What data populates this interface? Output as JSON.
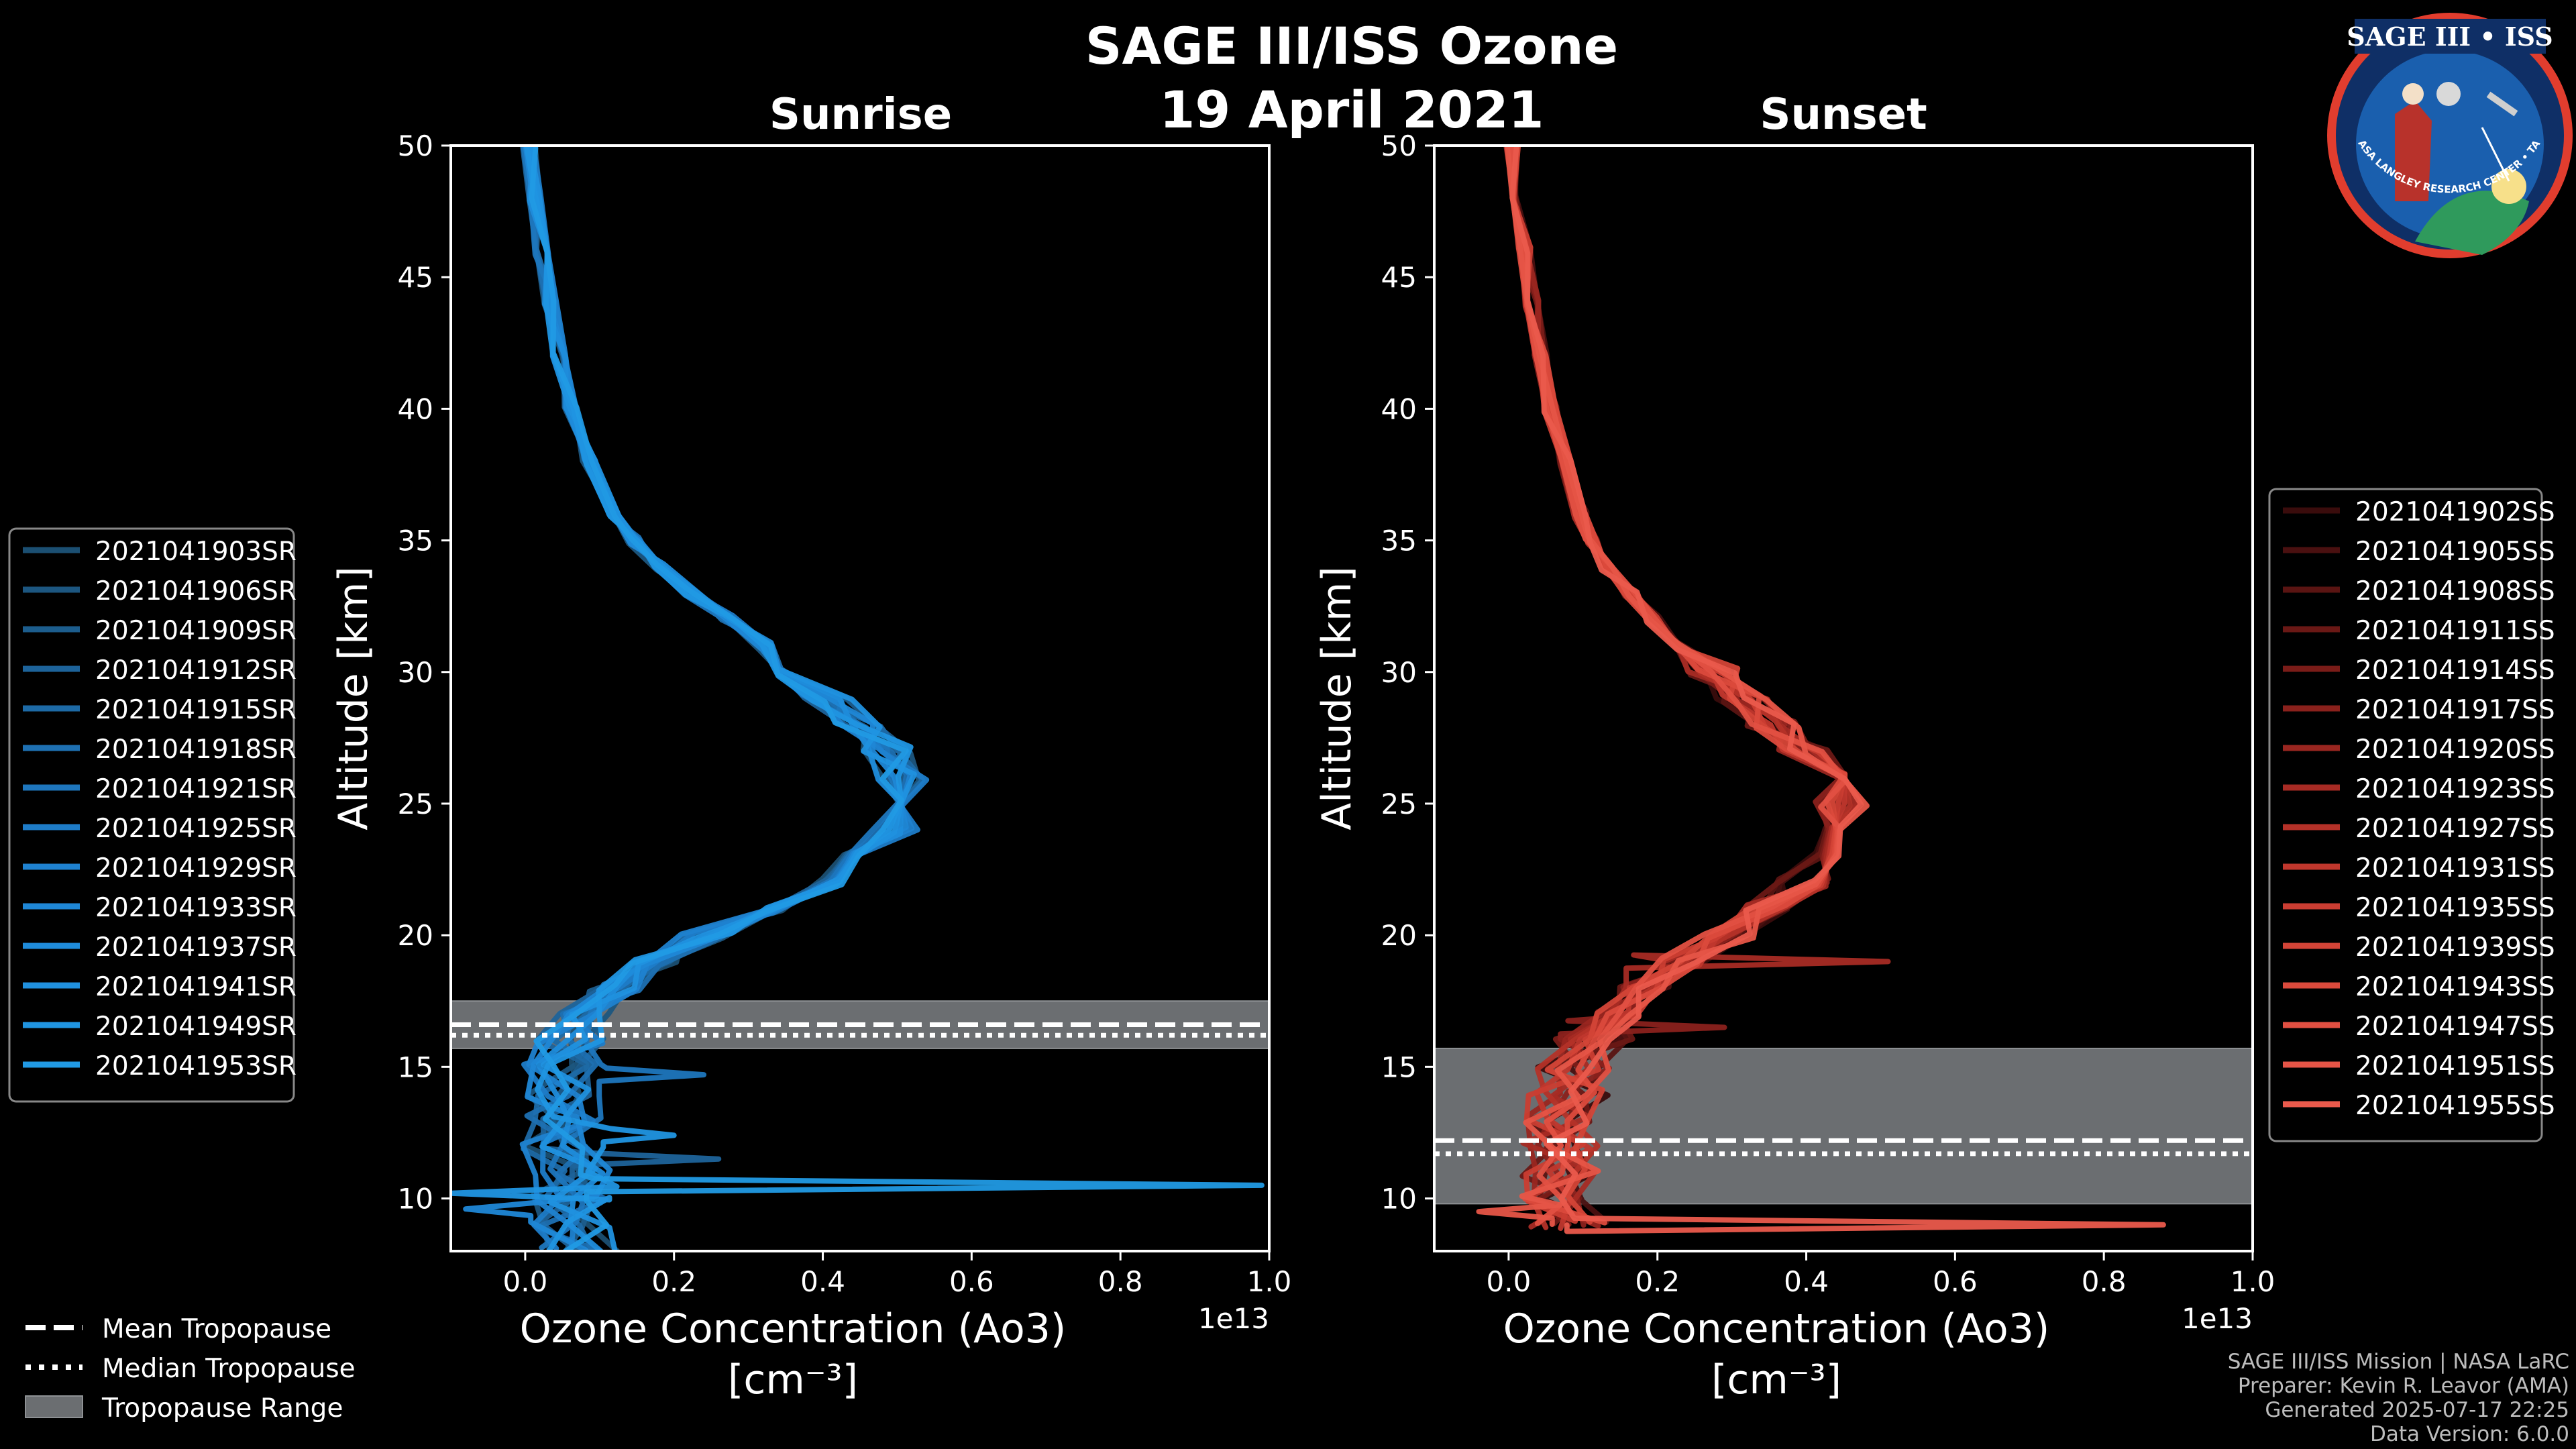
{
  "figure": {
    "title": "SAGE III/ISS Ozone",
    "date": "19 April 2021",
    "footer": [
      "SAGE III/ISS Mission | NASA LaRC",
      "Preparer: Kevin R. Leavor (AMA)",
      "Generated 2025-07-17 22:25",
      "Data Version: 6.0.0"
    ],
    "badge": {
      "title": "SAGE III • ISS",
      "ring_text": "BALL • NASA LANGLEY RESEARCH CENTER • TAS-I • ESA"
    },
    "colors": {
      "sunrise": "#1f9be0",
      "sunset": "#e8564a",
      "tropo_fill": "#6b6e71",
      "background": "#000000"
    }
  },
  "chart_data": [
    {
      "type": "line",
      "panel": "Sunrise",
      "title": "Sunrise",
      "xlabel": "Ozone Concentration (Ao3)",
      "xunit": "[cm⁻³]",
      "ylabel": "Altitude [km]",
      "xlim": [
        -0.1,
        1.0
      ],
      "ylim": [
        8,
        50
      ],
      "x_scale_label": "1e13",
      "xticks": [
        0.0,
        0.2,
        0.4,
        0.6,
        0.8,
        1.0
      ],
      "xtick_labels": [
        "0.0",
        "0.2",
        "0.4",
        "0.6",
        "0.8",
        "1.0"
      ],
      "yticks": [
        10,
        15,
        20,
        25,
        30,
        35,
        40,
        45,
        50
      ],
      "ytick_labels": [
        "10",
        "15",
        "20",
        "25",
        "30",
        "35",
        "40",
        "45",
        "50"
      ],
      "tropopause": {
        "mean": 16.6,
        "median": 16.2,
        "range": [
          15.7,
          17.5
        ]
      },
      "legend_position": "left",
      "series_names": [
        "2021041903SR",
        "2021041906SR",
        "2021041909SR",
        "2021041912SR",
        "2021041915SR",
        "2021041918SR",
        "2021041921SR",
        "2021041925SR",
        "2021041929SR",
        "2021041933SR",
        "2021041937SR",
        "2021041941SR",
        "2021041949SR",
        "2021041953SR"
      ],
      "series_colors": [
        "#1b4f72",
        "#1c5680",
        "#1c5d8d",
        "#1d639a",
        "#1d6aa6",
        "#1e70b2",
        "#1e76bd",
        "#1e7cc8",
        "#1f82d0",
        "#1f87d6",
        "#1f8cdb",
        "#2091df",
        "#2095e1",
        "#219ae4"
      ],
      "base_profile": {
        "altitude": [
          8,
          9,
          10,
          11,
          12,
          13,
          14,
          15,
          16,
          17,
          18,
          19,
          20,
          21,
          22,
          23,
          24,
          25,
          26,
          27,
          28,
          29,
          30,
          31,
          32,
          33,
          34,
          35,
          36,
          38,
          40,
          42,
          44,
          46,
          48,
          50
        ],
        "ozone": [
          0.07,
          0.06,
          0.06,
          0.06,
          0.05,
          0.05,
          0.05,
          0.05,
          0.06,
          0.08,
          0.12,
          0.17,
          0.24,
          0.33,
          0.4,
          0.45,
          0.49,
          0.51,
          0.5,
          0.48,
          0.44,
          0.4,
          0.36,
          0.32,
          0.27,
          0.22,
          0.18,
          0.145,
          0.12,
          0.085,
          0.06,
          0.045,
          0.033,
          0.022,
          0.012,
          0.005
        ]
      },
      "outliers": [
        {
          "series": 13,
          "altitude": 10.5,
          "ozone": 0.99
        },
        {
          "series": 12,
          "altitude": 10.2,
          "ozone": -0.1
        },
        {
          "series": 12,
          "altitude": 12.4,
          "ozone": 0.2
        },
        {
          "series": 6,
          "altitude": 14.7,
          "ozone": 0.24
        },
        {
          "series": 3,
          "altitude": 11.5,
          "ozone": 0.26
        },
        {
          "series": 9,
          "altitude": 9.6,
          "ozone": -0.08
        }
      ]
    },
    {
      "type": "line",
      "panel": "Sunset",
      "title": "Sunset",
      "xlabel": "Ozone Concentration (Ao3)",
      "xunit": "[cm⁻³]",
      "ylabel": "Altitude [km]",
      "xlim": [
        -0.1,
        1.0
      ],
      "ylim": [
        8,
        50
      ],
      "x_scale_label": "1e13",
      "xticks": [
        0.0,
        0.2,
        0.4,
        0.6,
        0.8,
        1.0
      ],
      "xtick_labels": [
        "0.0",
        "0.2",
        "0.4",
        "0.6",
        "0.8",
        "1.0"
      ],
      "yticks": [
        10,
        15,
        20,
        25,
        30,
        35,
        40,
        45,
        50
      ],
      "ytick_labels": [
        "10",
        "15",
        "20",
        "25",
        "30",
        "35",
        "40",
        "45",
        "50"
      ],
      "tropopause": {
        "mean": 12.2,
        "median": 11.7,
        "range": [
          9.8,
          15.7
        ]
      },
      "legend_position": "right",
      "series_names": [
        "2021041902SS",
        "2021041905SS",
        "2021041908SS",
        "2021041911SS",
        "2021041914SS",
        "2021041917SS",
        "2021041920SS",
        "2021041923SS",
        "2021041927SS",
        "2021041931SS",
        "2021041935SS",
        "2021041939SS",
        "2021041943SS",
        "2021041947SS",
        "2021041951SS",
        "2021041955SS"
      ],
      "series_colors": [
        "#3a0c0c",
        "#4a1010",
        "#5a1412",
        "#6a1815",
        "#7a1c18",
        "#8a211c",
        "#992620",
        "#a72b24",
        "#b43128",
        "#c0372d",
        "#ca3d32",
        "#d34437",
        "#db4a3c",
        "#e25042",
        "#e65547",
        "#ea5a4c"
      ],
      "base_profile": {
        "altitude": [
          9,
          10,
          11,
          12,
          13,
          14,
          15,
          16,
          17,
          18,
          19,
          20,
          21,
          22,
          23,
          24,
          25,
          26,
          27,
          28,
          29,
          30,
          31,
          32,
          33,
          34,
          35,
          36,
          38,
          40,
          42,
          44,
          46,
          48,
          50
        ],
        "ozone": [
          0.08,
          0.07,
          0.07,
          0.07,
          0.07,
          0.08,
          0.09,
          0.11,
          0.14,
          0.18,
          0.23,
          0.29,
          0.34,
          0.39,
          0.42,
          0.44,
          0.44,
          0.42,
          0.39,
          0.35,
          0.31,
          0.27,
          0.23,
          0.19,
          0.16,
          0.13,
          0.11,
          0.095,
          0.075,
          0.055,
          0.042,
          0.031,
          0.021,
          0.012,
          0.005
        ]
      },
      "outliers": [
        {
          "series": 15,
          "altitude": 9.0,
          "ozone": 0.88
        },
        {
          "series": 14,
          "altitude": 9.5,
          "ozone": -0.04
        },
        {
          "series": 7,
          "altitude": 19.0,
          "ozone": 0.51
        },
        {
          "series": 5,
          "altitude": 16.5,
          "ozone": 0.29
        }
      ]
    }
  ],
  "legend_tropopause": {
    "items": [
      {
        "label": "Mean Tropopause",
        "style": "dashed"
      },
      {
        "label": "Median Tropopause",
        "style": "dotted"
      },
      {
        "label": "Tropopause Range",
        "style": "fill"
      }
    ]
  }
}
